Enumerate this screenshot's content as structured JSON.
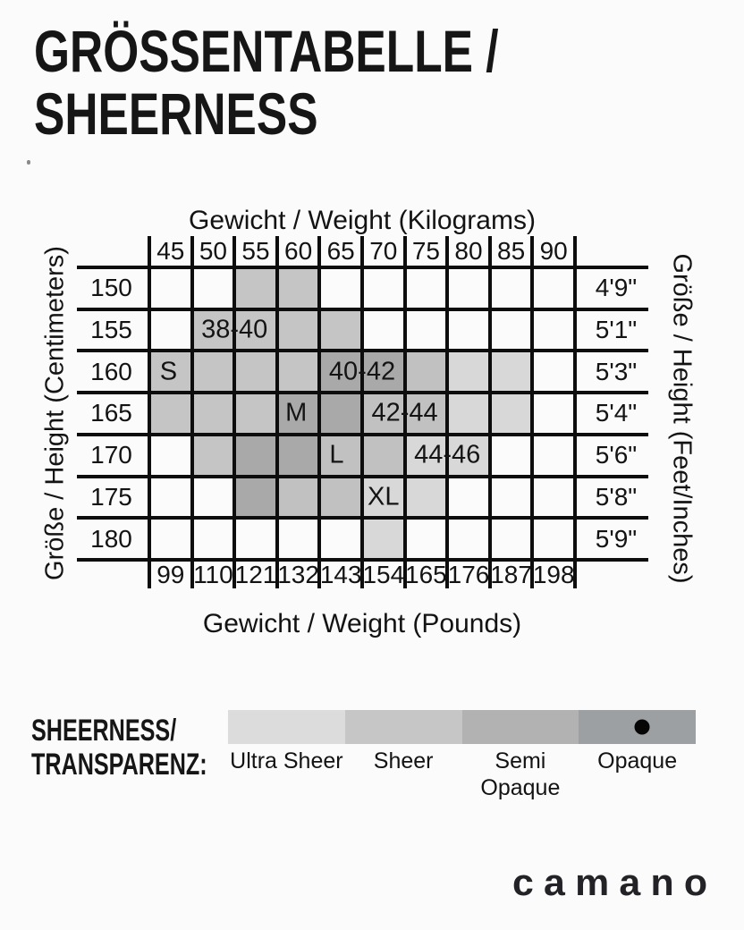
{
  "title": {
    "line1": "GRÖSSENTABELLE /",
    "line2": "SHEERNESS"
  },
  "chart_data": {
    "type": "heatmap",
    "top_axis_title": "Gewicht / Weight (Kilograms)",
    "bottom_axis_title": "Gewicht / Weight (Pounds)",
    "left_axis_title": "Größe / Height (Centimeters)",
    "right_axis_title": "Größe / Height  (Feet/Inches)",
    "columns_kg": [
      "45",
      "50",
      "55",
      "60",
      "65",
      "70",
      "75",
      "80",
      "85",
      "90"
    ],
    "columns_lbs": [
      "99",
      "110",
      "121",
      "132",
      "143",
      "154",
      "165",
      "176",
      "187",
      "198"
    ],
    "rows_cm": [
      "150",
      "155",
      "160",
      "165",
      "170",
      "175",
      "180"
    ],
    "rows_ft": [
      "4'9\"",
      "5'1\"",
      "5'3\"",
      "5'4\"",
      "5'6\"",
      "5'8\"",
      "5'9\""
    ],
    "bands": {
      "s": {
        "size_letter": "S",
        "size_range": "38-40",
        "color": "#c5c5c5"
      },
      "m": {
        "size_letter": "M",
        "size_range": "40-42",
        "color": "#a9a9a9"
      },
      "l": {
        "size_letter": "L",
        "size_range": "42-44",
        "color": "#c1c1c1"
      },
      "xl": {
        "size_letter": "XL",
        "size_range": "44-46",
        "color": "#d8d8d8"
      }
    },
    "cells": [
      [
        "",
        "",
        "s",
        "s",
        "",
        "",
        "",
        "",
        "",
        ""
      ],
      [
        "",
        "s",
        "s",
        "s",
        "s",
        "",
        "",
        "",
        "",
        ""
      ],
      [
        "s",
        "s",
        "s",
        "s",
        "m",
        "m",
        "l",
        "xl",
        "xl",
        ""
      ],
      [
        "s",
        "s",
        "s",
        "m",
        "m",
        "l",
        "l",
        "xl",
        "xl",
        ""
      ],
      [
        "",
        "s",
        "m",
        "m",
        "l",
        "l",
        "xl",
        "xl",
        "",
        ""
      ],
      [
        "",
        "",
        "m",
        "l",
        "l",
        "xl",
        "xl",
        "",
        "",
        ""
      ],
      [
        "",
        "",
        "",
        "",
        "",
        "xl",
        "",
        "",
        "",
        ""
      ]
    ],
    "band_labels": [
      {
        "band": "s",
        "text": "38-40",
        "col": 2.0,
        "row": 1.5
      },
      {
        "band": "s",
        "text": "S",
        "col": 0.45,
        "row": 2.5
      },
      {
        "band": "m",
        "text": "40-42",
        "col": 5.0,
        "row": 2.5
      },
      {
        "band": "m",
        "text": "M",
        "col": 3.45,
        "row": 3.5
      },
      {
        "band": "l",
        "text": "42-44",
        "col": 6.0,
        "row": 3.5
      },
      {
        "band": "l",
        "text": "L",
        "col": 4.4,
        "row": 4.5
      },
      {
        "band": "xl",
        "text": "44-46",
        "col": 7.0,
        "row": 4.5
      },
      {
        "band": "xl",
        "text": "XL",
        "col": 5.5,
        "row": 5.5
      }
    ],
    "grid_line_color": "#0d0d0d"
  },
  "legend": {
    "heading_line1": "SHEERNESS/",
    "heading_line2": "TRANSPARENZ:",
    "segments": [
      {
        "label": "Ultra Sheer",
        "color": "#dcdcdc",
        "selected": false
      },
      {
        "label": "Sheer",
        "color": "#c6c6c6",
        "selected": false
      },
      {
        "label": "Semi Opaque",
        "color": "#b2b2b2",
        "selected": false
      },
      {
        "label": "Opaque",
        "color": "#9da0a2",
        "selected": true
      }
    ]
  },
  "brand": {
    "logo_text": "camano"
  }
}
